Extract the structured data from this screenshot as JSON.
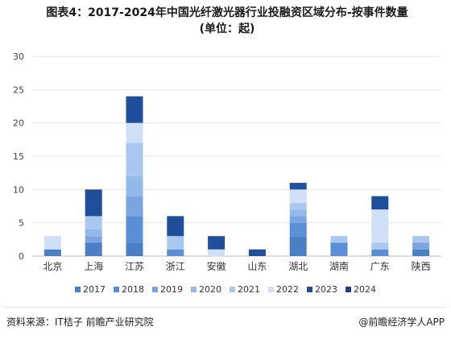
{
  "title": {
    "line1": "图表4：2017-2024年中国光纤激光器行业投融资区域分布-按事件数量",
    "line2": "(单位：起)"
  },
  "chart_data": {
    "type": "bar",
    "stacked": true,
    "categories": [
      "北京",
      "上海",
      "江苏",
      "浙江",
      "安徽",
      "山东",
      "湖北",
      "湖南",
      "广东",
      "陕西"
    ],
    "ylim": [
      0,
      30
    ],
    "yticks": [
      0,
      5,
      10,
      15,
      20,
      25,
      30
    ],
    "grid": true,
    "legend_position": "bottom",
    "series": [
      {
        "name": "2017",
        "color": "#4a7fc4",
        "values": [
          1,
          2,
          2,
          0,
          0,
          0,
          3,
          0,
          0,
          1
        ]
      },
      {
        "name": "2018",
        "color": "#5a8ed6",
        "values": [
          0,
          0,
          4,
          1,
          0,
          0,
          2,
          2,
          1,
          0
        ]
      },
      {
        "name": "2019",
        "color": "#7aa5e0",
        "values": [
          0,
          1,
          3,
          0,
          0,
          0,
          1,
          0,
          0,
          1
        ]
      },
      {
        "name": "2020",
        "color": "#93b8ea",
        "values": [
          0,
          1,
          3,
          0,
          0,
          0,
          1,
          0,
          0,
          0
        ]
      },
      {
        "name": "2021",
        "color": "#a9c7ef",
        "values": [
          0,
          2,
          5,
          2,
          0,
          0,
          1,
          1,
          1,
          1
        ]
      },
      {
        "name": "2022",
        "color": "#cfe0f6",
        "values": [
          2,
          0,
          3,
          0,
          1,
          0,
          2,
          0,
          5,
          0
        ]
      },
      {
        "name": "2023",
        "color": "#1f4f9a",
        "values": [
          0,
          4,
          4,
          3,
          2,
          1,
          1,
          0,
          2,
          0
        ]
      },
      {
        "name": "2024",
        "color": "#1a3f85",
        "values": [
          0,
          0,
          0,
          0,
          0,
          0,
          0,
          0,
          0,
          0
        ]
      }
    ]
  },
  "footer": {
    "source": "资料来源：IT桔子 前瞻产业研究院",
    "brand": "@前瞻经济学人APP"
  }
}
